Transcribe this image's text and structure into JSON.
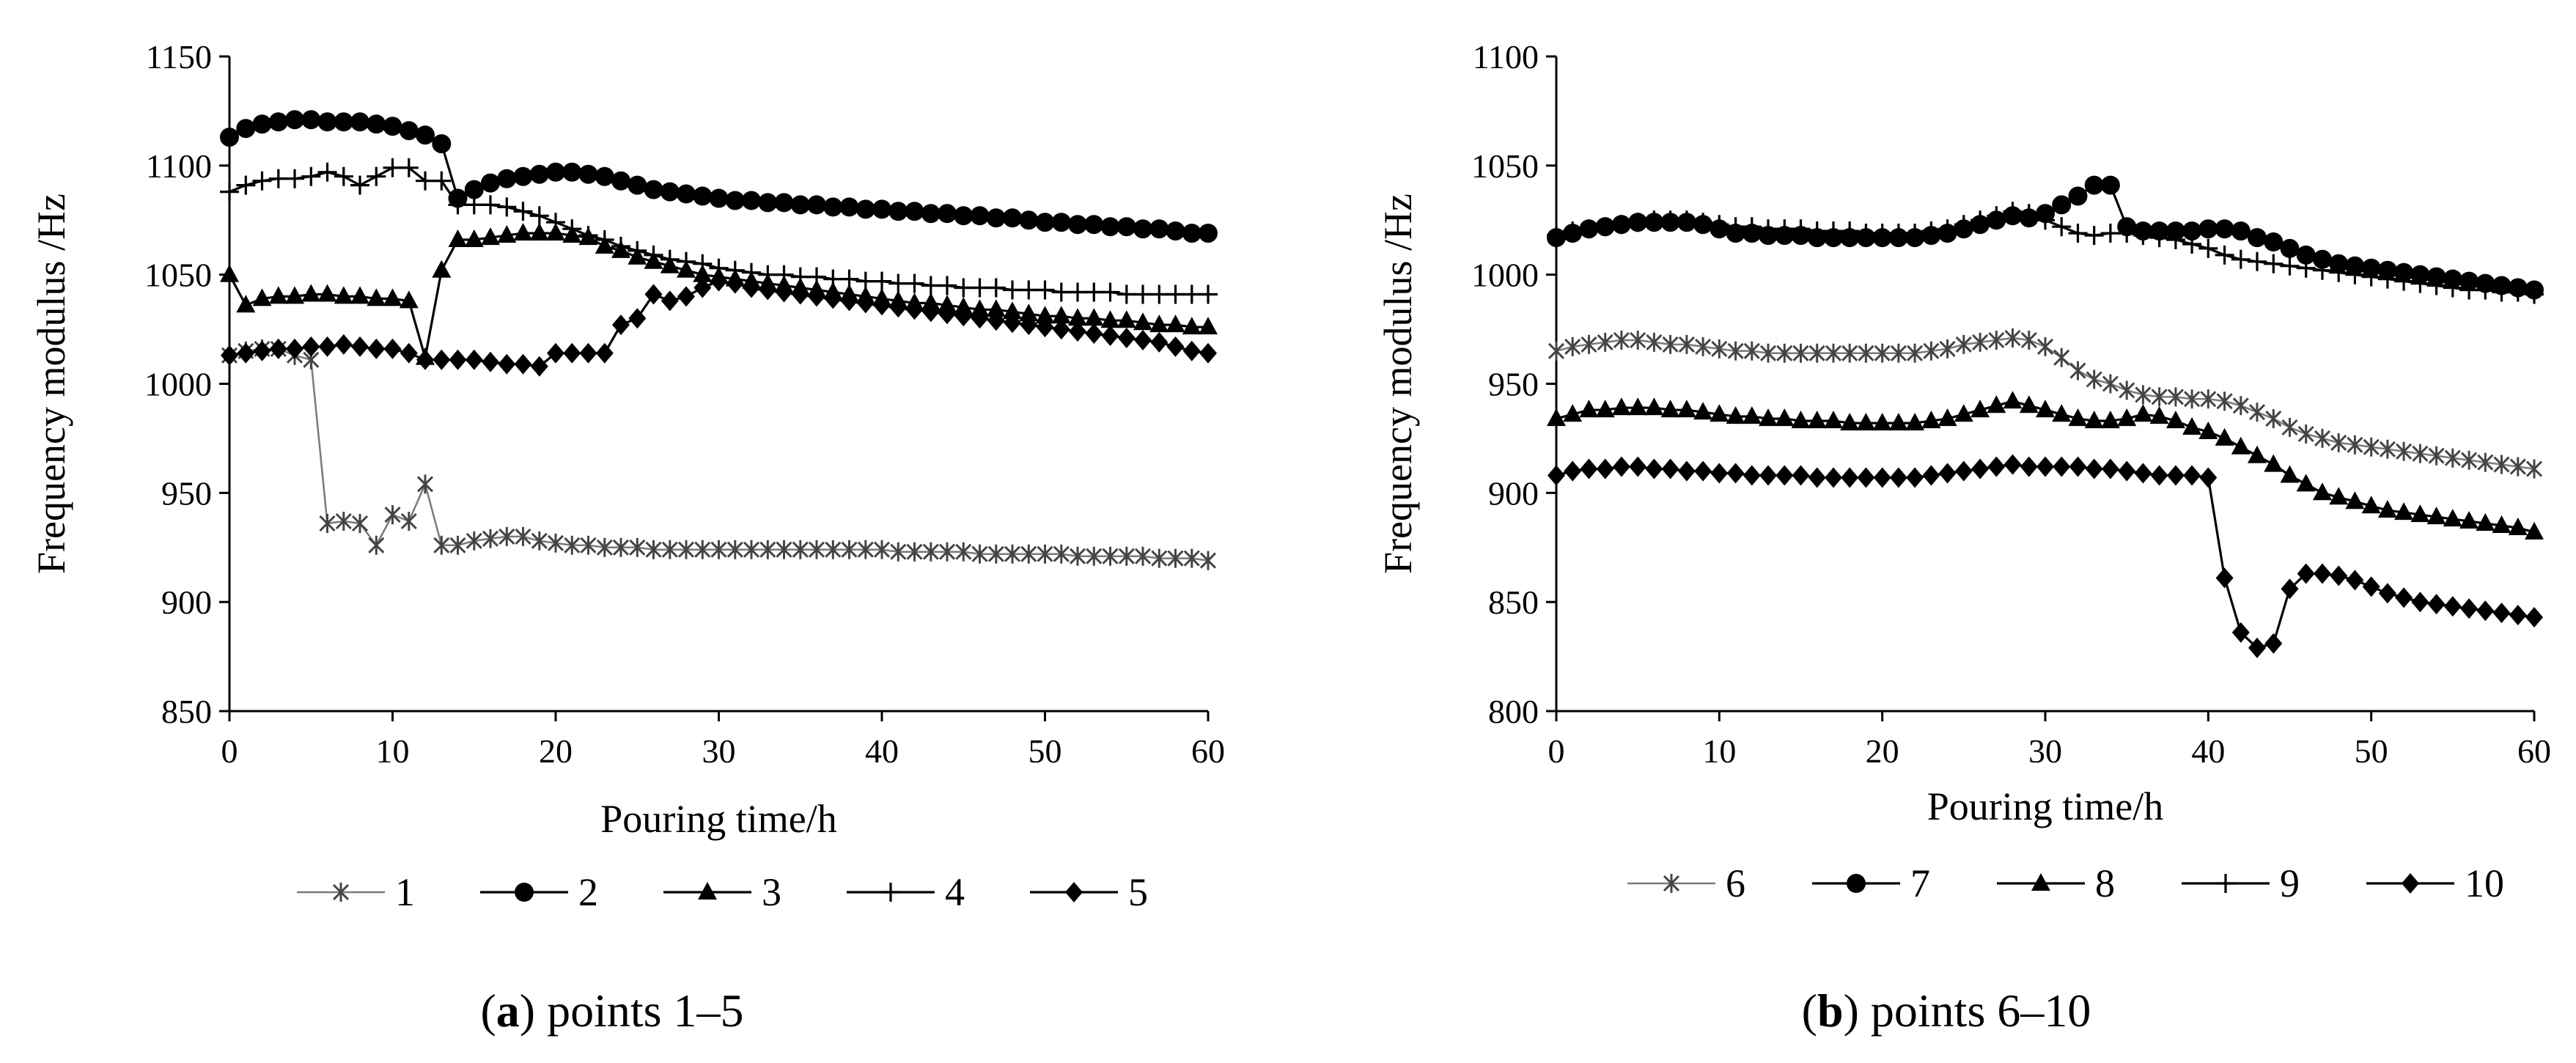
{
  "chart_data": [
    {
      "type": "line",
      "caption_label": "a",
      "caption_text": "points 1–5",
      "xlabel": "Pouring time/h",
      "ylabel": "Frequency modulus /Hz",
      "xlim": [
        0,
        60
      ],
      "ylim": [
        850,
        1150
      ],
      "xticks": [
        0,
        10,
        20,
        30,
        40,
        50,
        60
      ],
      "yticks": [
        850,
        900,
        950,
        1000,
        1050,
        1100,
        1150
      ],
      "x": [
        0,
        1,
        2,
        3,
        4,
        5,
        6,
        7,
        8,
        9,
        10,
        11,
        12,
        13,
        14,
        15,
        16,
        17,
        18,
        19,
        20,
        21,
        22,
        23,
        24,
        25,
        26,
        27,
        28,
        29,
        30,
        31,
        32,
        33,
        34,
        35,
        36,
        37,
        38,
        39,
        40,
        41,
        42,
        43,
        44,
        45,
        46,
        47,
        48,
        49,
        50,
        51,
        52,
        53,
        54,
        55,
        56,
        57,
        58,
        59,
        60
      ],
      "series": [
        {
          "name": "1",
          "marker": "x",
          "stroke": "#7a7a7a",
          "values": [
            1013,
            1015,
            1016,
            1016,
            1013,
            1011,
            936,
            937,
            936,
            926,
            940,
            937,
            954,
            926,
            926,
            928,
            929,
            930,
            930,
            928,
            927,
            926,
            926,
            925,
            925,
            925,
            924,
            924,
            924,
            924,
            924,
            924,
            924,
            924,
            924,
            924,
            924,
            924,
            924,
            924,
            924,
            923,
            923,
            923,
            923,
            923,
            922,
            922,
            922,
            922,
            922,
            922,
            921,
            921,
            921,
            921,
            921,
            920,
            920,
            920,
            919
          ]
        },
        {
          "name": "2",
          "marker": "circle",
          "stroke": "#000000",
          "values": [
            1113,
            1117,
            1119,
            1120,
            1121,
            1121,
            1120,
            1120,
            1120,
            1119,
            1118,
            1116,
            1114,
            1110,
            1085,
            1089,
            1092,
            1094,
            1095,
            1096,
            1097,
            1097,
            1096,
            1095,
            1093,
            1091,
            1089,
            1088,
            1087,
            1086,
            1085,
            1084,
            1084,
            1083,
            1083,
            1082,
            1082,
            1081,
            1081,
            1080,
            1080,
            1079,
            1079,
            1078,
            1078,
            1077,
            1077,
            1076,
            1076,
            1075,
            1074,
            1074,
            1073,
            1073,
            1072,
            1072,
            1071,
            1071,
            1070,
            1069,
            1069
          ]
        },
        {
          "name": "3",
          "marker": "triangle",
          "stroke": "#000000",
          "values": [
            1050,
            1036,
            1039,
            1040,
            1040,
            1041,
            1041,
            1040,
            1040,
            1039,
            1039,
            1038,
            1012,
            1052,
            1066,
            1066,
            1067,
            1068,
            1069,
            1069,
            1069,
            1068,
            1067,
            1063,
            1061,
            1058,
            1056,
            1054,
            1052,
            1050,
            1049,
            1048,
            1047,
            1046,
            1045,
            1044,
            1043,
            1042,
            1041,
            1040,
            1039,
            1038,
            1037,
            1037,
            1036,
            1035,
            1034,
            1034,
            1033,
            1032,
            1031,
            1031,
            1030,
            1030,
            1029,
            1029,
            1028,
            1027,
            1027,
            1026,
            1026
          ]
        },
        {
          "name": "4",
          "marker": "plus",
          "stroke": "#000000",
          "values": [
            1088,
            1091,
            1093,
            1094,
            1094,
            1095,
            1097,
            1095,
            1091,
            1095,
            1099,
            1099,
            1093,
            1093,
            1082,
            1082,
            1082,
            1081,
            1079,
            1077,
            1074,
            1071,
            1068,
            1066,
            1063,
            1061,
            1059,
            1057,
            1056,
            1055,
            1053,
            1052,
            1051,
            1050,
            1050,
            1049,
            1049,
            1048,
            1048,
            1047,
            1047,
            1046,
            1046,
            1045,
            1045,
            1044,
            1044,
            1044,
            1043,
            1043,
            1043,
            1042,
            1042,
            1042,
            1042,
            1041,
            1041,
            1041,
            1041,
            1041,
            1041
          ]
        },
        {
          "name": "5",
          "marker": "diamond",
          "stroke": "#000000",
          "values": [
            1013,
            1014,
            1015,
            1016,
            1016,
            1017,
            1017,
            1018,
            1017,
            1016,
            1016,
            1014,
            1011,
            1011,
            1011,
            1011,
            1010,
            1009,
            1009,
            1008,
            1014,
            1014,
            1014,
            1014,
            1027,
            1030,
            1041,
            1038,
            1040,
            1044,
            1047,
            1046,
            1044,
            1043,
            1042,
            1041,
            1040,
            1039,
            1038,
            1037,
            1036,
            1035,
            1034,
            1033,
            1032,
            1031,
            1030,
            1029,
            1028,
            1027,
            1026,
            1025,
            1024,
            1023,
            1022,
            1021,
            1020,
            1019,
            1017,
            1015,
            1014
          ]
        }
      ]
    },
    {
      "type": "line",
      "caption_label": "b",
      "caption_text": "points 6–10",
      "xlabel": "Pouring time/h",
      "ylabel": "Frequency modulus /Hz",
      "xlim": [
        0,
        60
      ],
      "ylim": [
        800,
        1100
      ],
      "xticks": [
        0,
        10,
        20,
        30,
        40,
        50,
        60
      ],
      "yticks": [
        800,
        850,
        900,
        950,
        1000,
        1050,
        1100
      ],
      "x": [
        0,
        1,
        2,
        3,
        4,
        5,
        6,
        7,
        8,
        9,
        10,
        11,
        12,
        13,
        14,
        15,
        16,
        17,
        18,
        19,
        20,
        21,
        22,
        23,
        24,
        25,
        26,
        27,
        28,
        29,
        30,
        31,
        32,
        33,
        34,
        35,
        36,
        37,
        38,
        39,
        40,
        41,
        42,
        43,
        44,
        45,
        46,
        47,
        48,
        49,
        50,
        51,
        52,
        53,
        54,
        55,
        56,
        57,
        58,
        59,
        60
      ],
      "series": [
        {
          "name": "6",
          "marker": "x",
          "stroke": "#7a7a7a",
          "values": [
            965,
            967,
            968,
            969,
            970,
            970,
            969,
            968,
            968,
            967,
            966,
            965,
            965,
            964,
            964,
            964,
            964,
            964,
            964,
            964,
            964,
            964,
            964,
            965,
            966,
            968,
            969,
            970,
            971,
            970,
            967,
            962,
            956,
            952,
            950,
            947,
            945,
            944,
            944,
            943,
            943,
            942,
            940,
            937,
            934,
            930,
            927,
            925,
            923,
            922,
            921,
            920,
            919,
            918,
            917,
            916,
            915,
            914,
            913,
            912,
            911
          ]
        },
        {
          "name": "7",
          "marker": "circle",
          "stroke": "#000000",
          "values": [
            1017,
            1019,
            1021,
            1022,
            1023,
            1024,
            1024,
            1024,
            1024,
            1023,
            1021,
            1019,
            1019,
            1018,
            1018,
            1018,
            1017,
            1017,
            1017,
            1017,
            1017,
            1017,
            1017,
            1018,
            1019,
            1021,
            1023,
            1025,
            1027,
            1026,
            1028,
            1032,
            1036,
            1041,
            1041,
            1022,
            1020,
            1020,
            1020,
            1020,
            1021,
            1021,
            1020,
            1017,
            1015,
            1012,
            1009,
            1007,
            1005,
            1004,
            1003,
            1002,
            1001,
            1000,
            999,
            998,
            997,
            996,
            995,
            994,
            993
          ]
        },
        {
          "name": "8",
          "marker": "triangle",
          "stroke": "#000000",
          "values": [
            934,
            936,
            938,
            938,
            939,
            939,
            939,
            938,
            938,
            937,
            936,
            935,
            935,
            934,
            934,
            933,
            933,
            933,
            932,
            932,
            932,
            932,
            932,
            933,
            934,
            936,
            938,
            940,
            942,
            940,
            938,
            936,
            934,
            933,
            933,
            934,
            936,
            935,
            933,
            930,
            928,
            925,
            921,
            917,
            913,
            908,
            904,
            900,
            898,
            896,
            894,
            892,
            891,
            890,
            889,
            888,
            887,
            886,
            885,
            884,
            882
          ]
        },
        {
          "name": "9",
          "marker": "plus",
          "stroke": "#000000",
          "values": [
            1018,
            1020,
            1021,
            1022,
            1023,
            1024,
            1025,
            1025,
            1025,
            1024,
            1023,
            1022,
            1022,
            1021,
            1021,
            1021,
            1020,
            1020,
            1020,
            1019,
            1019,
            1019,
            1019,
            1020,
            1021,
            1023,
            1025,
            1027,
            1029,
            1028,
            1025,
            1022,
            1019,
            1018,
            1019,
            1019,
            1018,
            1017,
            1016,
            1014,
            1012,
            1009,
            1007,
            1006,
            1005,
            1004,
            1003,
            1002,
            1001,
            1000,
            999,
            998,
            997,
            996,
            995,
            994,
            993,
            993,
            992,
            992,
            991
          ]
        },
        {
          "name": "10",
          "marker": "diamond",
          "stroke": "#000000",
          "values": [
            908,
            910,
            911,
            911,
            912,
            912,
            911,
            911,
            910,
            910,
            909,
            909,
            908,
            908,
            908,
            908,
            907,
            907,
            907,
            907,
            907,
            907,
            907,
            908,
            909,
            910,
            911,
            912,
            913,
            912,
            912,
            912,
            912,
            911,
            911,
            910,
            909,
            908,
            908,
            908,
            907,
            861,
            836,
            829,
            831,
            856,
            863,
            863,
            862,
            860,
            857,
            854,
            852,
            850,
            849,
            848,
            847,
            846,
            845,
            844,
            843
          ]
        }
      ]
    }
  ]
}
